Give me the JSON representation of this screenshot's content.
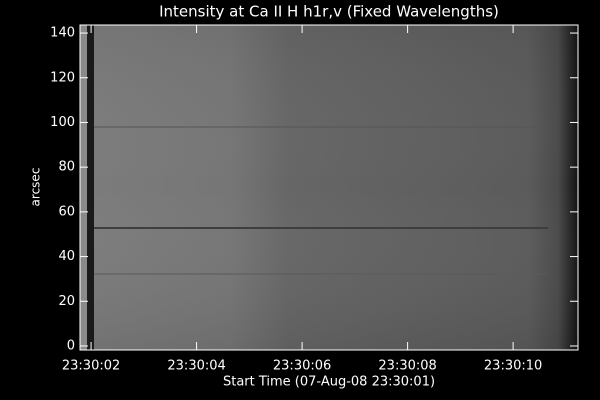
{
  "chart_data": {
    "type": "image",
    "title": "Intensity at Ca II H h1r,v (Fixed Wavelengths)",
    "xlabel": "Start Time (07-Aug-08 23:30:01)",
    "ylabel": "arcsec",
    "xlim": [
      1.79,
      11.23
    ],
    "xticks": [
      {
        "value": 2,
        "label": "23:30:02"
      },
      {
        "value": 4,
        "label": "23:30:04"
      },
      {
        "value": 6,
        "label": "23:30:06"
      },
      {
        "value": 8,
        "label": "23:30:08"
      },
      {
        "value": 10,
        "label": "23:30:10"
      }
    ],
    "ylim": [
      -1.8,
      143.6
    ],
    "yticks": [
      0,
      20,
      40,
      60,
      80,
      100,
      120,
      140
    ]
  }
}
